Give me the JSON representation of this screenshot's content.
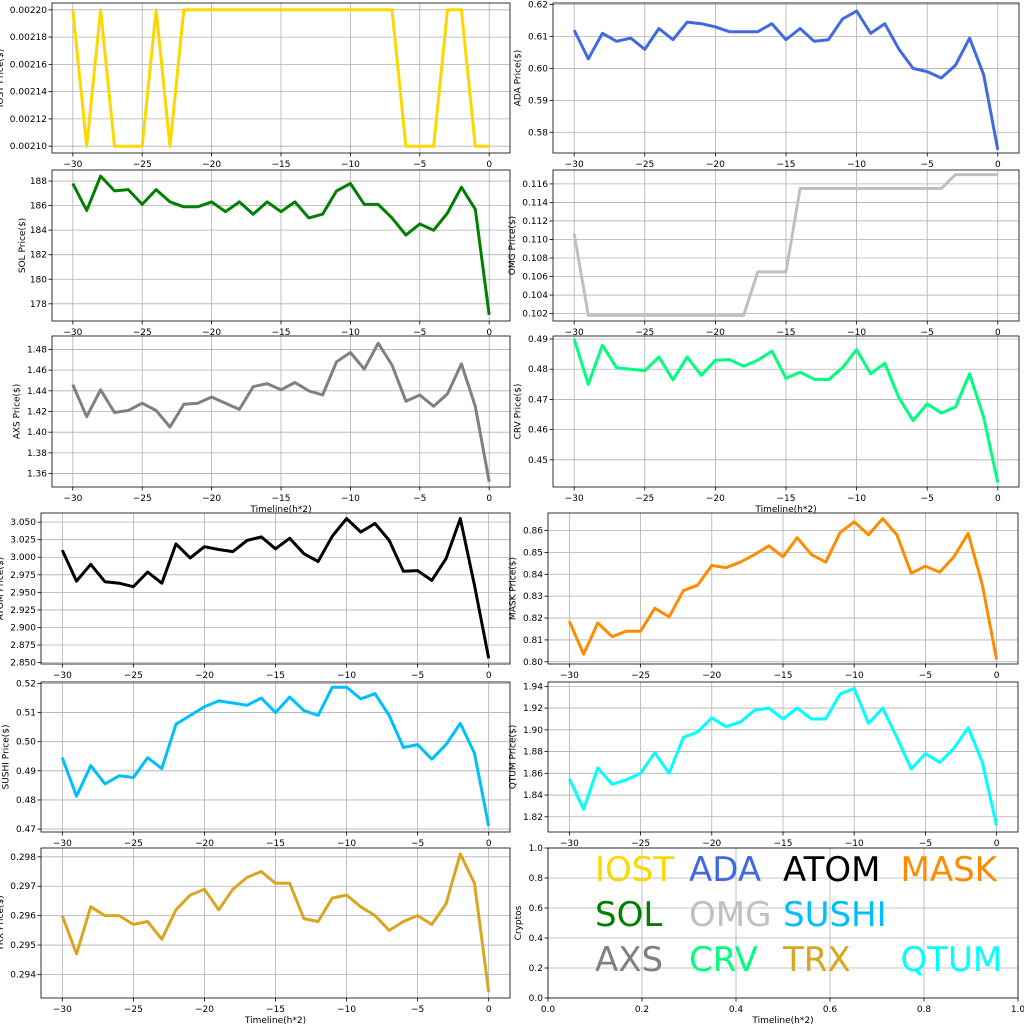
{
  "chart_data": [
    {
      "type": "line",
      "name": "IOST",
      "ylabel": "IOST Price($)",
      "xlabel": "",
      "color": "#FFD700",
      "xlim": [
        -31.5,
        1.5
      ],
      "ylim": [
        0.002095,
        0.002205
      ],
      "xticks": [
        "−30",
        "−25",
        "−20",
        "−15",
        "−10",
        "−5",
        "0"
      ],
      "yticks": [
        "0.00210",
        "0.00212",
        "0.00214",
        "0.00216",
        "0.00218",
        "0.00220"
      ],
      "values": [
        0.0022,
        0.0021,
        0.0022,
        0.0021,
        0.0021,
        0.0021,
        0.0022,
        0.0021,
        0.0022,
        0.0022,
        0.0022,
        0.0022,
        0.0022,
        0.0022,
        0.0022,
        0.0022,
        0.0022,
        0.0022,
        0.0022,
        0.0022,
        0.0022,
        0.0022,
        0.0022,
        0.0022,
        0.0021,
        0.0021,
        0.0021,
        0.0022,
        0.0022,
        0.0021,
        0.0021
      ]
    },
    {
      "type": "line",
      "name": "ADA",
      "ylabel": "ADA  Price($)",
      "xlabel": "",
      "color": "#4169E1",
      "xlim": [
        -31.5,
        1.5
      ],
      "ylim": [
        0.5735,
        0.6205
      ],
      "xticks": [
        "−30",
        "−25",
        "−20",
        "−15",
        "−10",
        "−5",
        "0"
      ],
      "yticks": [
        "0.58",
        "0.59",
        "0.60",
        "0.61",
        "0.62"
      ],
      "values": [
        0.612,
        0.603,
        0.611,
        0.6085,
        0.6095,
        0.606,
        0.6125,
        0.609,
        0.6145,
        0.614,
        0.613,
        0.6115,
        0.6115,
        0.6115,
        0.614,
        0.609,
        0.6125,
        0.6085,
        0.609,
        0.6155,
        0.618,
        0.611,
        0.614,
        0.606,
        0.6,
        0.599,
        0.597,
        0.601,
        0.6095,
        0.598,
        0.5745
      ]
    },
    {
      "type": "line",
      "name": "SOL",
      "ylabel": "SOL Price($)",
      "xlabel": "",
      "color": "#008000",
      "xlim": [
        -31.5,
        1.5
      ],
      "ylim": [
        176.6,
        188.9
      ],
      "xticks": [
        "−30",
        "−25",
        "−20",
        "−15",
        "−10",
        "−5",
        "0"
      ],
      "yticks": [
        "178",
        "180",
        "182",
        "184",
        "186",
        "188"
      ],
      "values": [
        187.8,
        185.6,
        188.4,
        187.2,
        187.3,
        186.1,
        187.3,
        186.3,
        185.9,
        185.9,
        186.3,
        185.5,
        186.3,
        185.3,
        186.3,
        185.5,
        186.3,
        185.0,
        185.3,
        187.2,
        187.8,
        186.1,
        186.1,
        185.0,
        183.6,
        184.5,
        184.0,
        185.4,
        187.5,
        185.7,
        177.1
      ]
    },
    {
      "type": "line",
      "name": "OMG",
      "ylabel": "OMG  Price($)",
      "xlabel": "",
      "color": "#C0C0C0",
      "xlim": [
        -31.5,
        1.5
      ],
      "ylim": [
        0.1012,
        0.1175
      ],
      "xticks": [
        "−30",
        "−25",
        "−20",
        "−15",
        "−10",
        "−5",
        "0"
      ],
      "yticks": [
        "0.102",
        "0.104",
        "0.106",
        "0.108",
        "0.110",
        "0.112",
        "0.114",
        "0.116"
      ],
      "values": [
        0.1106,
        0.1018,
        0.1018,
        0.1018,
        0.1018,
        0.1018,
        0.1018,
        0.1018,
        0.1018,
        0.1018,
        0.1018,
        0.1018,
        0.1018,
        0.1065,
        0.1065,
        0.1065,
        0.1155,
        0.1155,
        0.1155,
        0.1155,
        0.1155,
        0.1155,
        0.1155,
        0.1155,
        0.1155,
        0.1155,
        0.1155,
        0.117,
        0.117,
        0.117,
        0.117
      ]
    },
    {
      "type": "line",
      "name": "AXS",
      "ylabel": "AXS Price($)",
      "xlabel": "Timeline(h*2)",
      "color": "#808080",
      "xlim": [
        -31.5,
        1.5
      ],
      "ylim": [
        1.347,
        1.493
      ],
      "xticks": [
        "−30",
        "−25",
        "−20",
        "−15",
        "−10",
        "−5",
        "0"
      ],
      "yticks": [
        "1.36",
        "1.38",
        "1.40",
        "1.42",
        "1.44",
        "1.46",
        "1.48"
      ],
      "values": [
        1.446,
        1.415,
        1.441,
        1.419,
        1.421,
        1.428,
        1.421,
        1.405,
        1.427,
        1.428,
        1.434,
        1.428,
        1.422,
        1.444,
        1.447,
        1.441,
        1.448,
        1.44,
        1.436,
        1.468,
        1.477,
        1.461,
        1.486,
        1.465,
        1.43,
        1.436,
        1.425,
        1.437,
        1.466,
        1.425,
        1.352
      ]
    },
    {
      "type": "line",
      "name": "CRV",
      "ylabel": "CRV  Price($)",
      "xlabel": "Timeline(h*2)",
      "color": "#00FF7F",
      "xlim": [
        -31.5,
        1.5
      ],
      "ylim": [
        0.441,
        0.491
      ],
      "xticks": [
        "−30",
        "−25",
        "−20",
        "−15",
        "−10",
        "−5",
        "0"
      ],
      "yticks": [
        "0.45",
        "0.46",
        "0.47",
        "0.48",
        "0.49"
      ],
      "values": [
        0.49,
        0.475,
        0.488,
        0.4805,
        0.48,
        0.4795,
        0.484,
        0.4765,
        0.484,
        0.478,
        0.483,
        0.4832,
        0.481,
        0.483,
        0.486,
        0.477,
        0.479,
        0.4767,
        0.4765,
        0.4805,
        0.4865,
        0.4785,
        0.482,
        0.4705,
        0.463,
        0.4685,
        0.4655,
        0.4675,
        0.4785,
        0.464,
        0.4425
      ]
    },
    {
      "type": "line",
      "name": "ATOM",
      "ylabel": "ATOM  Price($)",
      "xlabel": "",
      "color": "#000000",
      "xlim": [
        -31.5,
        1.5
      ],
      "ylim": [
        2.848,
        3.063
      ],
      "xticks": [
        "−30",
        "−25",
        "−20",
        "−15",
        "−10",
        "−5",
        "0"
      ],
      "yticks": [
        "2.850",
        "2.875",
        "2.900",
        "2.925",
        "2.950",
        "2.975",
        "3.000",
        "3.025",
        "3.050"
      ],
      "values": [
        3.01,
        2.966,
        2.99,
        2.965,
        2.963,
        2.958,
        2.979,
        2.963,
        3.019,
        2.999,
        3.015,
        3.011,
        3.008,
        3.024,
        3.029,
        3.012,
        3.027,
        3.005,
        2.994,
        3.03,
        3.055,
        3.036,
        3.048,
        3.024,
        2.98,
        2.981,
        2.967,
        2.998,
        3.055,
        2.96,
        2.856
      ]
    },
    {
      "type": "line",
      "name": "MASK",
      "ylabel": "MASK  Price($)",
      "xlabel": "",
      "color": "#FF8C00",
      "xlim": [
        -31.5,
        1.5
      ],
      "ylim": [
        0.799,
        0.868
      ],
      "xticks": [
        "−30",
        "−25",
        "−20",
        "−15",
        "−10",
        "−5",
        "0"
      ],
      "yticks": [
        "0.80",
        "0.81",
        "0.82",
        "0.83",
        "0.84",
        "0.85",
        "0.86"
      ],
      "values": [
        0.8185,
        0.8035,
        0.8178,
        0.8115,
        0.814,
        0.814,
        0.8245,
        0.8205,
        0.8325,
        0.835,
        0.844,
        0.843,
        0.8455,
        0.849,
        0.853,
        0.848,
        0.8567,
        0.849,
        0.8455,
        0.859,
        0.864,
        0.858,
        0.8655,
        0.858,
        0.8405,
        0.8437,
        0.841,
        0.848,
        0.8587,
        0.835,
        0.801
      ]
    },
    {
      "type": "line",
      "name": "SUSHI",
      "ylabel": "SUSHI  Price($)",
      "xlabel": "",
      "color": "#00BFFF",
      "xlim": [
        -31.5,
        1.5
      ],
      "ylim": [
        0.469,
        0.5205
      ],
      "xticks": [
        "−30",
        "−25",
        "−20",
        "−15",
        "−10",
        "−5",
        "0"
      ],
      "yticks": [
        "0.47",
        "0.48",
        "0.49",
        "0.50",
        "0.51",
        "0.52"
      ],
      "values": [
        0.4945,
        0.4813,
        0.4918,
        0.4855,
        0.4883,
        0.4877,
        0.4945,
        0.4908,
        0.506,
        0.509,
        0.512,
        0.514,
        0.5133,
        0.5125,
        0.515,
        0.51,
        0.5153,
        0.5107,
        0.509,
        0.5187,
        0.5187,
        0.5147,
        0.5165,
        0.509,
        0.498,
        0.499,
        0.494,
        0.499,
        0.5063,
        0.496,
        0.471
      ]
    },
    {
      "type": "line",
      "name": "QTUM",
      "ylabel": "QTUM Price($)",
      "xlabel": "",
      "color": "#00FFFF",
      "xlim": [
        -31.5,
        1.5
      ],
      "ylim": [
        1.806,
        1.944
      ],
      "xticks": [
        "−30",
        "−25",
        "−20",
        "−15",
        "−10",
        "−5",
        "0"
      ],
      "yticks": [
        "1.82",
        "1.84",
        "1.86",
        "1.88",
        "1.90",
        "1.92",
        "1.94"
      ],
      "values": [
        1.855,
        1.827,
        1.865,
        1.85,
        1.854,
        1.86,
        1.879,
        1.86,
        1.893,
        1.898,
        1.911,
        1.903,
        1.907,
        1.918,
        1.92,
        1.91,
        1.92,
        1.91,
        1.91,
        1.933,
        1.938,
        1.906,
        1.92,
        1.893,
        1.864,
        1.878,
        1.87,
        1.883,
        1.902,
        1.87,
        1.812
      ]
    },
    {
      "type": "line",
      "name": "TRX",
      "ylabel": "TRX Price($)",
      "xlabel": "Timeline(h*2)",
      "color": "#DAA520",
      "xlim": [
        -31.5,
        1.5
      ],
      "ylim": [
        0.2932,
        0.2983
      ],
      "xticks": [
        "−30",
        "−25",
        "−20",
        "−15",
        "−10",
        "−5",
        "0"
      ],
      "yticks": [
        "0.294",
        "0.295",
        "0.296",
        "0.297",
        "0.298"
      ],
      "values": [
        0.296,
        0.2947,
        0.2963,
        0.296,
        0.296,
        0.2957,
        0.2958,
        0.2952,
        0.2962,
        0.2967,
        0.2969,
        0.2962,
        0.2969,
        0.2973,
        0.2975,
        0.2971,
        0.2971,
        0.2959,
        0.2958,
        0.2966,
        0.2967,
        0.2963,
        0.296,
        0.2955,
        0.2958,
        0.296,
        0.2957,
        0.2964,
        0.2981,
        0.2971,
        0.2934
      ]
    },
    {
      "type": "table",
      "name": "legend",
      "ylabel": "Cryptos",
      "xlabel": "Timeline(h*2)",
      "xlim": [
        0,
        1
      ],
      "ylim": [
        0,
        1
      ],
      "xticks": [
        "0.0",
        "0.2",
        "0.4",
        "0.6",
        "0.8",
        "1.0"
      ],
      "yticks": [
        "0.0",
        "0.2",
        "0.4",
        "0.6",
        "0.8",
        "1.0"
      ],
      "labels": [
        {
          "text": "IOST",
          "color": "#FFD700"
        },
        {
          "text": "ADA",
          "color": "#4169E1"
        },
        {
          "text": "ATOM",
          "color": "#000000"
        },
        {
          "text": "MASK",
          "color": "#FF8C00"
        },
        {
          "text": "SOL",
          "color": "#008000"
        },
        {
          "text": "OMG",
          "color": "#C0C0C0"
        },
        {
          "text": "SUSHI",
          "color": "#00BFFF"
        },
        {
          "text": "AXS",
          "color": "#808080"
        },
        {
          "text": "CRV",
          "color": "#00FF7F"
        },
        {
          "text": "TRX",
          "color": "#DAA520"
        },
        {
          "text": "QTUM",
          "color": "#00FFFF"
        }
      ]
    }
  ]
}
